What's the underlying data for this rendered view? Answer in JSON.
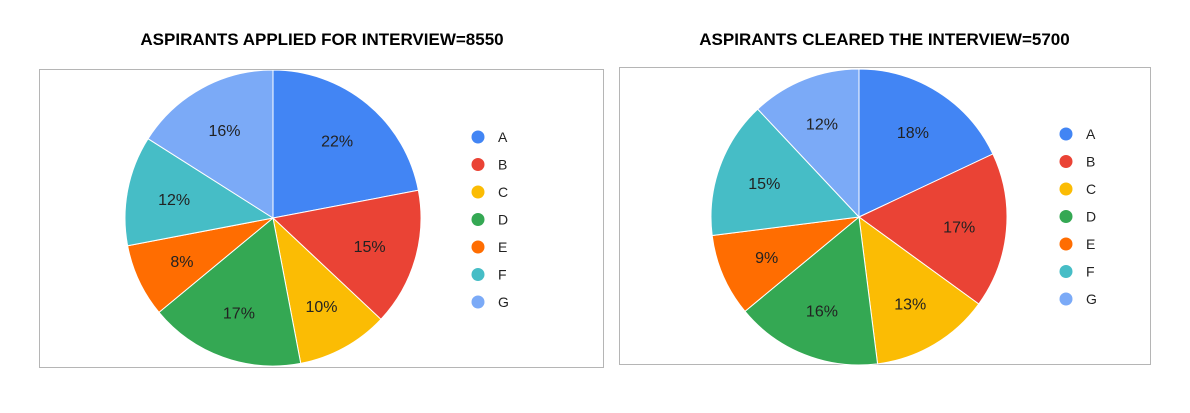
{
  "chart_data": [
    {
      "type": "pie",
      "title": "ASPIRANTS APPLIED FOR INTERVIEW=8550",
      "legend_position": "right",
      "slices": [
        {
          "label": "A",
          "value": 22,
          "display": "22%",
          "color": "#4285f4"
        },
        {
          "label": "B",
          "value": 15,
          "display": "15%",
          "color": "#ea4335"
        },
        {
          "label": "C",
          "value": 10,
          "display": "10%",
          "color": "#fbbc04"
        },
        {
          "label": "D",
          "value": 17,
          "display": "17%",
          "color": "#34a853"
        },
        {
          "label": "E",
          "value": 8,
          "display": "8%",
          "color": "#ff6d01"
        },
        {
          "label": "F",
          "value": 12,
          "display": "12%",
          "color": "#46bdc6"
        },
        {
          "label": "G",
          "value": 16,
          "display": "16%",
          "color": "#7baaf7"
        }
      ]
    },
    {
      "type": "pie",
      "title": "ASPIRANTS CLEARED THE INTERVIEW=5700",
      "legend_position": "right",
      "slices": [
        {
          "label": "A",
          "value": 18,
          "display": "18%",
          "color": "#4285f4"
        },
        {
          "label": "B",
          "value": 17,
          "display": "17%",
          "color": "#ea4335"
        },
        {
          "label": "C",
          "value": 13,
          "display": "13%",
          "color": "#fbbc04"
        },
        {
          "label": "D",
          "value": 16,
          "display": "16%",
          "color": "#34a853"
        },
        {
          "label": "E",
          "value": 9,
          "display": "9%",
          "color": "#ff6d01"
        },
        {
          "label": "F",
          "value": 15,
          "display": "15%",
          "color": "#46bdc6"
        },
        {
          "label": "G",
          "value": 12,
          "display": "12%",
          "color": "#7baaf7"
        }
      ]
    }
  ]
}
